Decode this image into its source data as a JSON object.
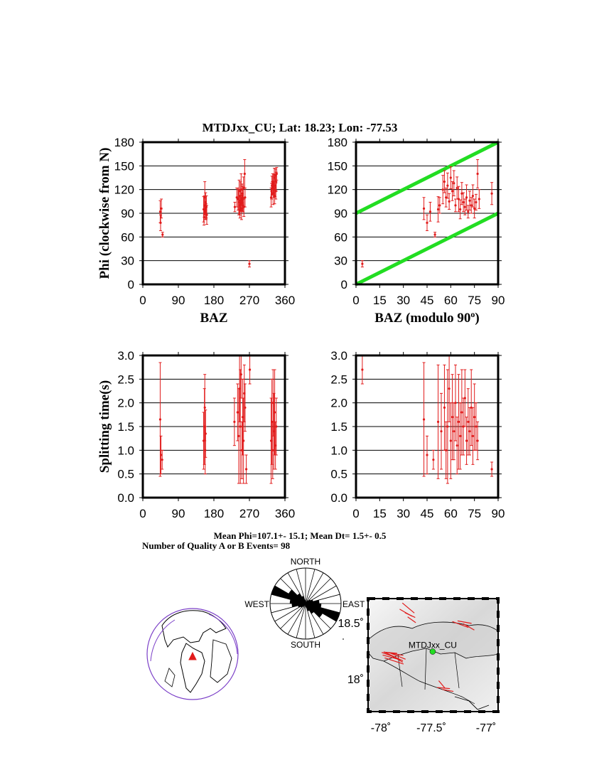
{
  "figure": {
    "title": "MTDJxx_CU; Lat:  18.23;  Lon:  -77.53",
    "stats_line1": "Mean Phi=107.1+-  15.1; Mean Dt=  1.5+-  0.5",
    "stats_line2": "Number of Quality A or B Events= 98"
  },
  "colors": {
    "data": "#e11b1b",
    "guide": "#22dd22",
    "axis": "#000000",
    "globe_outline": "#7a3ec7"
  },
  "chart_data": [
    {
      "type": "scatter",
      "id": "phi_vs_baz",
      "xlabel": "BAZ",
      "ylabel": "Phi (clockwise from N)",
      "xlim": [
        0,
        360
      ],
      "ylim": [
        0,
        180
      ],
      "xticks": [
        0,
        90,
        180,
        270,
        360
      ],
      "xtick_labels": [
        "0",
        "90",
        "180",
        "270",
        "360"
      ],
      "yticks": [
        0,
        30,
        60,
        90,
        120,
        150,
        180
      ],
      "ytick_labels": [
        "0",
        "30",
        "60",
        "90",
        "120",
        "150",
        "180"
      ],
      "points": [
        [
          44,
          92,
          14
        ],
        [
          45,
          78,
          10
        ],
        [
          47,
          96,
          12
        ],
        [
          50,
          63,
          3
        ],
        [
          154,
          95,
          16
        ],
        [
          155,
          85,
          10
        ],
        [
          156,
          100,
          12
        ],
        [
          157,
          110,
          20
        ],
        [
          158,
          90,
          8
        ],
        [
          159,
          104,
          12
        ],
        [
          160,
          92,
          10
        ],
        [
          161,
          98,
          14
        ],
        [
          162,
          88,
          12
        ],
        [
          233,
          98,
          6
        ],
        [
          238,
          110,
          12
        ],
        [
          241,
          108,
          14
        ],
        [
          243,
          104,
          16
        ],
        [
          244,
          118,
          14
        ],
        [
          245,
          100,
          12
        ],
        [
          246,
          94,
          10
        ],
        [
          247,
          112,
          18
        ],
        [
          248,
          106,
          14
        ],
        [
          249,
          120,
          20
        ],
        [
          250,
          96,
          14
        ],
        [
          251,
          103,
          10
        ],
        [
          252,
          115,
          12
        ],
        [
          253,
          108,
          16
        ],
        [
          254,
          100,
          8
        ],
        [
          255,
          122,
          14
        ],
        [
          256,
          98,
          12
        ],
        [
          258,
          140,
          18
        ],
        [
          259,
          110,
          12
        ],
        [
          270,
          26,
          4
        ],
        [
          325,
          110,
          12
        ],
        [
          326,
          118,
          10
        ],
        [
          327,
          125,
          12
        ],
        [
          328,
          122,
          8
        ],
        [
          329,
          130,
          10
        ],
        [
          330,
          115,
          14
        ],
        [
          331,
          128,
          12
        ],
        [
          332,
          120,
          10
        ],
        [
          333,
          135,
          12
        ],
        [
          334,
          112,
          10
        ],
        [
          335,
          125,
          14
        ],
        [
          336,
          138,
          8
        ],
        [
          337,
          118,
          10
        ],
        [
          338,
          130,
          12
        ],
        [
          339,
          140,
          8
        ]
      ]
    },
    {
      "type": "scatter",
      "id": "phi_vs_baz_mod90",
      "xlabel": "BAZ (modulo 90o)",
      "ylabel": "",
      "xlim": [
        0,
        90
      ],
      "ylim": [
        0,
        180
      ],
      "xticks": [
        0,
        15,
        30,
        45,
        60,
        75,
        90
      ],
      "xtick_labels": [
        "0",
        "15",
        "30",
        "45",
        "60",
        "75",
        "90"
      ],
      "yticks": [
        0,
        30,
        60,
        90,
        120,
        150,
        180
      ],
      "ytick_labels": [
        "0",
        "30",
        "60",
        "90",
        "120",
        "150",
        "180"
      ],
      "guide_lines": [
        {
          "from": [
            0,
            90
          ],
          "to": [
            90,
            180
          ]
        },
        {
          "from": [
            0,
            0
          ],
          "to": [
            90,
            90
          ]
        }
      ],
      "points": [
        [
          4,
          26,
          4
        ],
        [
          43,
          96,
          14
        ],
        [
          45,
          78,
          10
        ],
        [
          47,
          92,
          12
        ],
        [
          50,
          63,
          3
        ],
        [
          52,
          95,
          16
        ],
        [
          53,
          100,
          10
        ],
        [
          55,
          120,
          18
        ],
        [
          56,
          130,
          14
        ],
        [
          57,
          110,
          12
        ],
        [
          58,
          125,
          16
        ],
        [
          59,
          105,
          10
        ],
        [
          60,
          135,
          14
        ],
        [
          61,
          118,
          12
        ],
        [
          62,
          128,
          16
        ],
        [
          63,
          100,
          8
        ],
        [
          64,
          122,
          14
        ],
        [
          65,
          108,
          16
        ],
        [
          66,
          95,
          12
        ],
        [
          67,
          115,
          14
        ],
        [
          68,
          104,
          12
        ],
        [
          69,
          98,
          10
        ],
        [
          70,
          110,
          16
        ],
        [
          71,
          92,
          8
        ],
        [
          72,
          106,
          12
        ],
        [
          73,
          100,
          10
        ],
        [
          74,
          112,
          14
        ],
        [
          75,
          96,
          12
        ],
        [
          76,
          104,
          10
        ],
        [
          77,
          140,
          18
        ],
        [
          78,
          108,
          12
        ],
        [
          86,
          115,
          14
        ]
      ]
    },
    {
      "type": "scatter",
      "id": "dt_vs_baz",
      "xlabel": "",
      "ylabel": "Splitting time(s)",
      "xlim": [
        0,
        360
      ],
      "ylim": [
        0,
        3
      ],
      "xticks": [
        0,
        90,
        180,
        270,
        360
      ],
      "xtick_labels": [
        "0",
        "90",
        "180",
        "270",
        "360"
      ],
      "yticks": [
        0,
        0.5,
        1,
        1.5,
        2,
        2.5,
        3
      ],
      "ytick_labels": [
        "0.0",
        "0.5",
        "1.0",
        "1.5",
        "2.0",
        "2.5",
        "3.0"
      ],
      "points": [
        [
          44,
          1.65,
          1.2
        ],
        [
          46,
          0.9,
          0.4
        ],
        [
          49,
          0.8,
          0.2
        ],
        [
          154,
          1.2,
          0.6
        ],
        [
          156,
          1.5,
          0.8
        ],
        [
          157,
          1.9,
          0.7
        ],
        [
          158,
          1.0,
          0.5
        ],
        [
          159,
          1.35,
          0.5
        ],
        [
          232,
          1.6,
          0.5
        ],
        [
          240,
          1.8,
          0.6
        ],
        [
          243,
          1.3,
          1.0
        ],
        [
          245,
          2.3,
          0.7
        ],
        [
          247,
          1.5,
          1.2
        ],
        [
          249,
          2.6,
          0.5
        ],
        [
          251,
          1.0,
          0.6
        ],
        [
          253,
          1.7,
          0.8
        ],
        [
          255,
          1.2,
          0.9
        ],
        [
          257,
          2.2,
          0.6
        ],
        [
          259,
          1.9,
          0.5
        ],
        [
          262,
          0.6,
          0.3
        ],
        [
          271,
          2.7,
          0.3
        ],
        [
          325,
          1.2,
          0.9
        ],
        [
          327,
          1.6,
          0.9
        ],
        [
          329,
          1.0,
          0.6
        ],
        [
          330,
          2.0,
          0.7
        ],
        [
          332,
          1.4,
          0.8
        ],
        [
          334,
          1.8,
          0.9
        ],
        [
          336,
          1.1,
          0.5
        ],
        [
          338,
          1.5,
          0.6
        ]
      ]
    },
    {
      "type": "scatter",
      "id": "dt_vs_baz_mod90",
      "xlabel": "",
      "ylabel": "",
      "xlim": [
        0,
        90
      ],
      "ylim": [
        0,
        3
      ],
      "xticks": [
        0,
        15,
        30,
        45,
        60,
        75,
        90
      ],
      "xtick_labels": [
        "0",
        "15",
        "30",
        "45",
        "60",
        "75",
        "90"
      ],
      "yticks": [
        0,
        0.5,
        1,
        1.5,
        2,
        2.5,
        3
      ],
      "ytick_labels": [
        "0.0",
        "0.5",
        "1.0",
        "1.5",
        "2.0",
        "2.5",
        "3.0"
      ],
      "points": [
        [
          4,
          2.7,
          0.3
        ],
        [
          43,
          1.65,
          1.2
        ],
        [
          45,
          0.9,
          0.4
        ],
        [
          49,
          0.8,
          0.2
        ],
        [
          52,
          1.6,
          1.2
        ],
        [
          54,
          1.4,
          0.8
        ],
        [
          56,
          1.9,
          0.9
        ],
        [
          57,
          1.0,
          0.6
        ],
        [
          58,
          1.5,
          1.2
        ],
        [
          59,
          2.3,
          0.7
        ],
        [
          60,
          1.2,
          0.8
        ],
        [
          61,
          1.7,
          0.9
        ],
        [
          62,
          1.4,
          0.6
        ],
        [
          63,
          2.0,
          0.8
        ],
        [
          64,
          1.1,
          0.6
        ],
        [
          65,
          1.6,
          1.0
        ],
        [
          66,
          1.3,
          0.7
        ],
        [
          67,
          1.8,
          0.9
        ],
        [
          68,
          1.5,
          0.6
        ],
        [
          69,
          2.1,
          0.6
        ],
        [
          70,
          1.2,
          0.5
        ],
        [
          71,
          1.6,
          0.7
        ],
        [
          72,
          1.4,
          0.5
        ],
        [
          73,
          1.9,
          0.8
        ],
        [
          74,
          1.3,
          0.6
        ],
        [
          75,
          1.7,
          0.7
        ],
        [
          76,
          1.5,
          0.5
        ],
        [
          77,
          1.2,
          0.4
        ],
        [
          86,
          0.6,
          0.15
        ]
      ]
    }
  ],
  "rose": {
    "labels": {
      "north": "NORTH",
      "south": "SOUTH",
      "east": "EAST",
      "west": "WEST"
    },
    "bin_counts": [
      0.0,
      0.0,
      0.1,
      0.15,
      0.2,
      0.35,
      0.4,
      0.9,
      0.5,
      0.3,
      0.2,
      0.1
    ]
  },
  "map": {
    "station_label": "MTDJxx_CU",
    "lat_ticks": [
      "18.5˚",
      "18˚"
    ],
    "lon_ticks": [
      "-78˚",
      "-77.5˚",
      "-77˚"
    ],
    "station": {
      "lon": -77.53,
      "lat": 18.23
    },
    "extent": {
      "lon": [
        -78.3,
        -76.75
      ],
      "lat": [
        17.72,
        18.68
      ]
    }
  }
}
